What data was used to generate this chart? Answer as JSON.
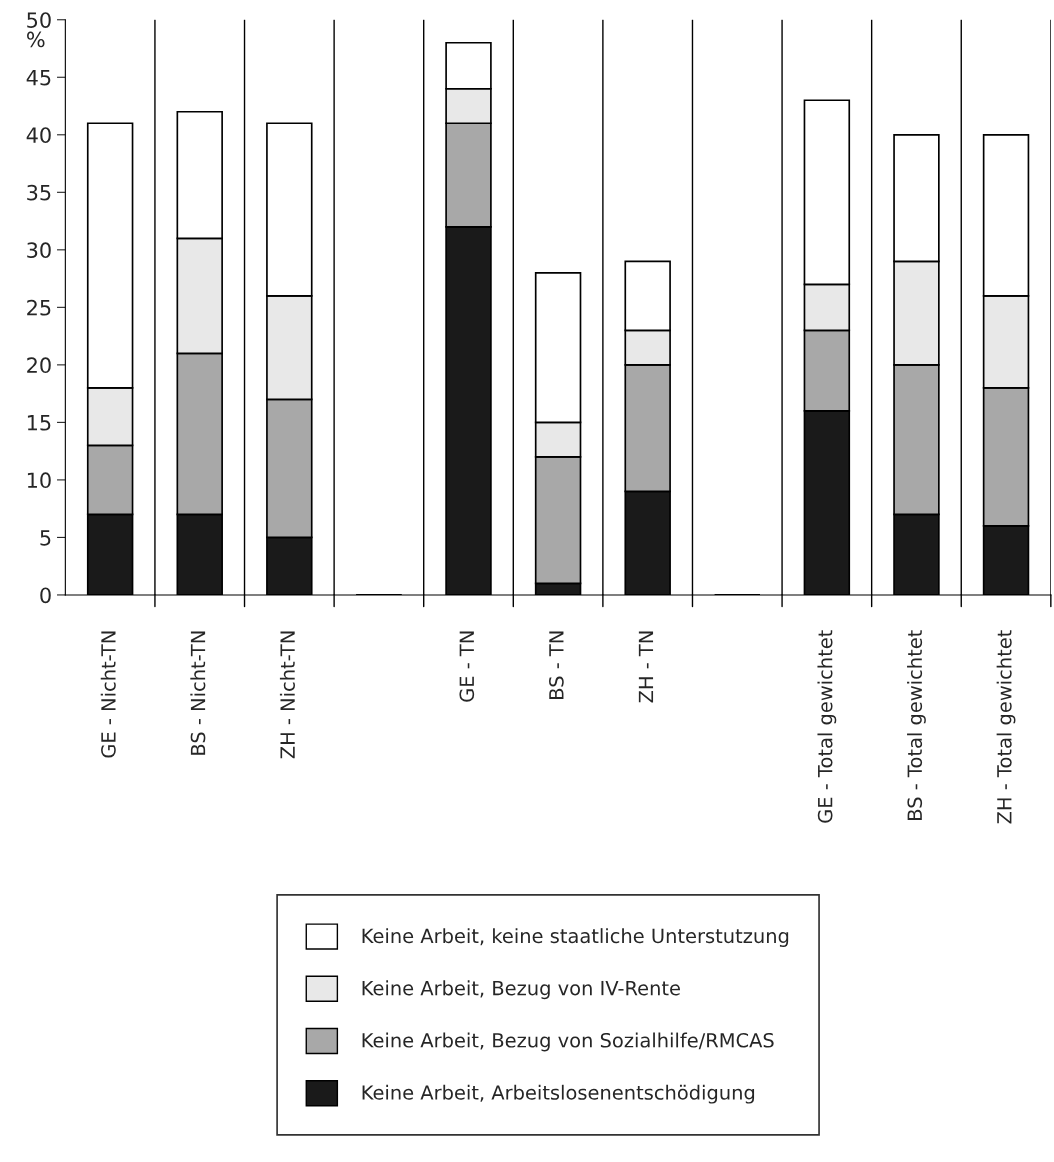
{
  "chart_data": {
    "type": "bar",
    "stacked": true,
    "ylabel": "%",
    "categories": [
      "GE - Nicht-TN",
      "BS - Nicht-TN",
      "ZH - Nicht-TN",
      null,
      "GE - TN",
      "BS - TN",
      "ZH - TN",
      null,
      "GE - Total gewichtet",
      "BS - Total gewichtet",
      "ZH - Total gewichtet"
    ],
    "series": [
      {
        "name": "Keine Arbeit, Arbeitslosenentschödigung",
        "color": "#1a1a1a",
        "values": [
          7,
          7,
          5,
          null,
          32,
          1,
          9,
          null,
          16,
          7,
          6
        ]
      },
      {
        "name": "Keine Arbeit, Bezug von Sozialhilfe/RMCAS",
        "color": "#a8a8a8",
        "values": [
          6,
          14,
          12,
          null,
          9,
          11,
          11,
          null,
          7,
          13,
          12
        ]
      },
      {
        "name": "Keine Arbeit, Bezug von IV-Rente",
        "color": "#e8e8e8",
        "values": [
          5,
          10,
          9,
          null,
          3,
          3,
          3,
          null,
          4,
          9,
          8
        ]
      },
      {
        "name": "Keine Arbeit, keine staatliche Unterstutzung",
        "color": "#ffffff",
        "values": [
          23,
          11,
          15,
          null,
          4,
          13,
          6,
          null,
          16,
          11,
          14
        ]
      }
    ],
    "ylim": [
      0,
      50
    ],
    "yticks": [
      0,
      5,
      10,
      15,
      20,
      25,
      30,
      35,
      40,
      45,
      50
    ],
    "grid": "x",
    "legend": "bottom"
  }
}
